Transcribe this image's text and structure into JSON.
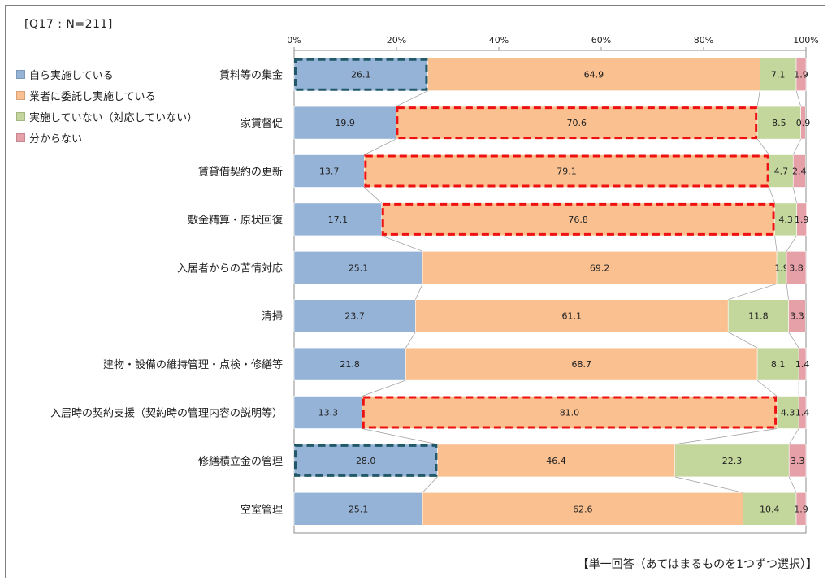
{
  "header_label": "[Q17 : N=211]",
  "footer_note": "【単一回答（あてはまるものを1つずつ選択）】",
  "colors": {
    "self": "#95b3d7",
    "outsourced": "#fac090",
    "not_done": "#c3d69b",
    "unknown": "#e6a0a8",
    "highlight_red": "#ee1111",
    "highlight_teal": "#215968"
  },
  "chart_data": {
    "type": "bar",
    "orientation": "horizontal",
    "stacked": true,
    "xlim": [
      0,
      100
    ],
    "x_ticks": [
      "0%",
      "20%",
      "40%",
      "60%",
      "80%",
      "100%"
    ],
    "legend_position": "left",
    "categories": [
      "賃料等の集金",
      "家賃督促",
      "賃貸借契約の更新",
      "敷金精算・原状回復",
      "入居者からの苦情対応",
      "清掃",
      "建物・設備の維持管理・点検・修繕等",
      "入居時の契約支援（契約時の管理内容の説明等）",
      "修繕積立金の管理",
      "空室管理"
    ],
    "series": [
      {
        "name": "自ら実施している",
        "values": [
          26.1,
          19.9,
          13.7,
          17.1,
          25.1,
          23.7,
          21.8,
          13.3,
          28.0,
          25.1
        ]
      },
      {
        "name": "業者に委託し実施している",
        "values": [
          64.9,
          70.6,
          79.1,
          76.8,
          69.2,
          61.1,
          68.7,
          81.0,
          46.4,
          62.6
        ]
      },
      {
        "name": "実施していない（対応していない）",
        "values": [
          7.1,
          8.5,
          4.7,
          4.3,
          1.9,
          11.8,
          8.1,
          4.3,
          22.3,
          10.4
        ]
      },
      {
        "name": "分からない",
        "values": [
          1.9,
          0.9,
          2.4,
          1.9,
          3.8,
          3.3,
          1.4,
          1.4,
          3.3,
          1.9
        ]
      }
    ],
    "value_labels": [
      [
        "26.1",
        "64.9",
        "7.1",
        "1.9"
      ],
      [
        "19.9",
        "70.6",
        "8.5",
        "0.9"
      ],
      [
        "13.7",
        "79.1",
        "4.7",
        "2.4"
      ],
      [
        "17.1",
        "76.8",
        "4.3",
        "1.9"
      ],
      [
        "25.1",
        "69.2",
        "1.9",
        "3.8"
      ],
      [
        "23.7",
        "61.1",
        "11.8",
        "3.3"
      ],
      [
        "21.8",
        "68.7",
        "8.1",
        "1.4"
      ],
      [
        "13.3",
        "81.0",
        "4.3",
        "1.4"
      ],
      [
        "28.0",
        "46.4",
        "22.3",
        "3.3"
      ],
      [
        "25.1",
        "62.6",
        "10.4",
        "1.9"
      ]
    ],
    "highlights": [
      {
        "row": 0,
        "series": 0,
        "style": "teal"
      },
      {
        "row": 1,
        "series": 1,
        "style": "red"
      },
      {
        "row": 2,
        "series": 1,
        "style": "red"
      },
      {
        "row": 3,
        "series": 1,
        "style": "red"
      },
      {
        "row": 7,
        "series": 1,
        "style": "red"
      },
      {
        "row": 8,
        "series": 0,
        "style": "teal"
      }
    ]
  }
}
